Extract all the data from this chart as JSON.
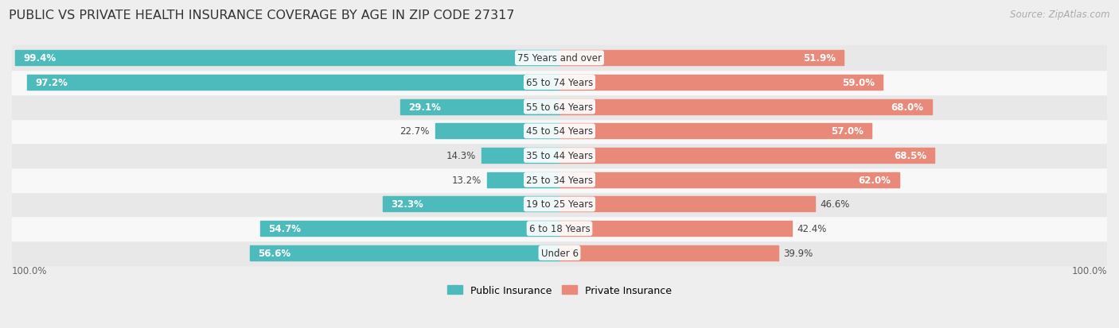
{
  "title": "PUBLIC VS PRIVATE HEALTH INSURANCE COVERAGE BY AGE IN ZIP CODE 27317",
  "source": "Source: ZipAtlas.com",
  "categories": [
    "Under 6",
    "6 to 18 Years",
    "19 to 25 Years",
    "25 to 34 Years",
    "35 to 44 Years",
    "45 to 54 Years",
    "55 to 64 Years",
    "65 to 74 Years",
    "75 Years and over"
  ],
  "public_values": [
    56.6,
    54.7,
    32.3,
    13.2,
    14.3,
    22.7,
    29.1,
    97.2,
    99.4
  ],
  "private_values": [
    39.9,
    42.4,
    46.6,
    62.0,
    68.5,
    57.0,
    68.0,
    59.0,
    51.9
  ],
  "public_color": "#4DBBBB",
  "private_color": "#E8897A",
  "background_color": "#eeeeee",
  "row_colors": [
    "#e8e8e8",
    "#f8f8f8"
  ],
  "title_fontsize": 11.5,
  "label_fontsize": 8.5,
  "source_fontsize": 8.5,
  "legend_fontsize": 9,
  "max_value": 100.0,
  "left_label": "100.0%",
  "right_label": "100.0%"
}
